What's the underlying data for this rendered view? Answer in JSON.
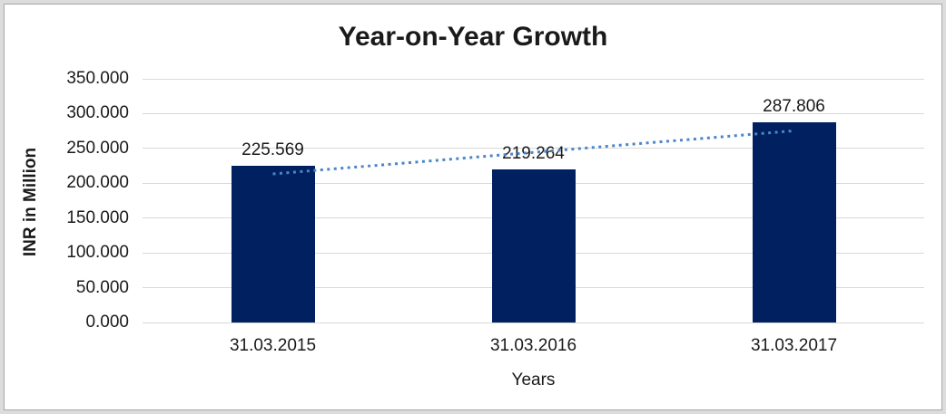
{
  "frame": {
    "outer_border_color": "#dcdcdc",
    "inner_border_color": "#a6a6a6",
    "background": "#ffffff"
  },
  "chart_data": {
    "type": "bar",
    "title": "Year-on-Year Growth",
    "xlabel": "Years",
    "ylabel": "INR in Million",
    "categories": [
      "31.03.2015",
      "31.03.2016",
      "31.03.2017"
    ],
    "values": [
      225.569,
      219.264,
      287.806
    ],
    "data_labels": [
      "225.569",
      "219.264",
      "287.806"
    ],
    "ylim": [
      0,
      350
    ],
    "ytick_step": 50,
    "ytick_labels": [
      "0.000",
      "50.000",
      "100.000",
      "150.000",
      "200.000",
      "250.000",
      "300.000",
      "350.000"
    ],
    "grid": true,
    "legend_position": "none",
    "bar_color": "#002060",
    "text_color": "#1a1a1a",
    "gridline_color": "#d9d9d9",
    "trendline": {
      "style": "dotted",
      "color": "#4a86c8",
      "start_value": 213.4,
      "end_value": 275.3
    }
  }
}
